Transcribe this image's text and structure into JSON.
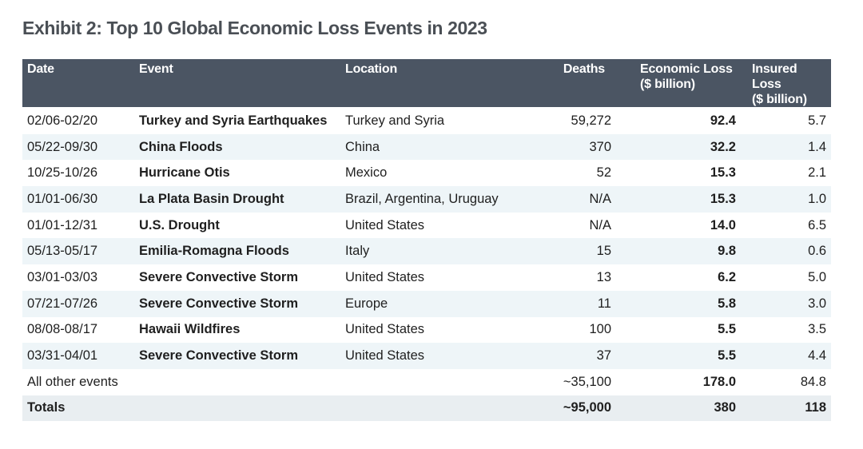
{
  "title": "Exhibit 2: Top 10 Global Economic Loss Events in 2023",
  "columns": {
    "date": "Date",
    "event": "Event",
    "location": "Location",
    "deaths": "Deaths",
    "economic_loss_1": "Economic Loss",
    "economic_loss_2": "($ billion)",
    "insured_loss_1": "Insured Loss",
    "insured_loss_2": "($ billion)"
  },
  "rows": [
    {
      "date": "02/06-02/20",
      "event": "Turkey and Syria Earthquakes",
      "location": "Turkey and Syria",
      "deaths": "59,272",
      "economic_loss": "92.4",
      "insured_loss": "5.7"
    },
    {
      "date": "05/22-09/30",
      "event": "China Floods",
      "location": "China",
      "deaths": "370",
      "economic_loss": "32.2",
      "insured_loss": "1.4"
    },
    {
      "date": "10/25-10/26",
      "event": "Hurricane Otis",
      "location": "Mexico",
      "deaths": "52",
      "economic_loss": "15.3",
      "insured_loss": "2.1"
    },
    {
      "date": "01/01-06/30",
      "event": "La Plata Basin Drought",
      "location": "Brazil, Argentina, Uruguay",
      "deaths": "N/A",
      "economic_loss": "15.3",
      "insured_loss": "1.0"
    },
    {
      "date": "01/01-12/31",
      "event": "U.S. Drought",
      "location": "United States",
      "deaths": "N/A",
      "economic_loss": "14.0",
      "insured_loss": "6.5"
    },
    {
      "date": "05/13-05/17",
      "event": "Emilia-Romagna Floods",
      "location": "Italy",
      "deaths": "15",
      "economic_loss": "9.8",
      "insured_loss": "0.6"
    },
    {
      "date": "03/01-03/03",
      "event": "Severe Convective Storm",
      "location": "United States",
      "deaths": "13",
      "economic_loss": "6.2",
      "insured_loss": "5.0"
    },
    {
      "date": "07/21-07/26",
      "event": "Severe Convective Storm",
      "location": "Europe",
      "deaths": "11",
      "economic_loss": "5.8",
      "insured_loss": "3.0"
    },
    {
      "date": "08/08-08/17",
      "event": "Hawaii Wildfires",
      "location": "United States",
      "deaths": "100",
      "economic_loss": "5.5",
      "insured_loss": "3.5"
    },
    {
      "date": "03/31-04/01",
      "event": "Severe Convective Storm",
      "location": "United States",
      "deaths": "37",
      "economic_loss": "5.5",
      "insured_loss": "4.4"
    }
  ],
  "other": {
    "label": "All other events",
    "deaths": "~35,100",
    "economic_loss": "178.0",
    "insured_loss": "84.8"
  },
  "totals": {
    "label": "Totals",
    "deaths": "~95,000",
    "economic_loss": "380",
    "insured_loss": "118"
  },
  "colors": {
    "header_bg": "#4b5563",
    "row_alt_bg": "#eef5f8",
    "title": "#4a4f55"
  }
}
